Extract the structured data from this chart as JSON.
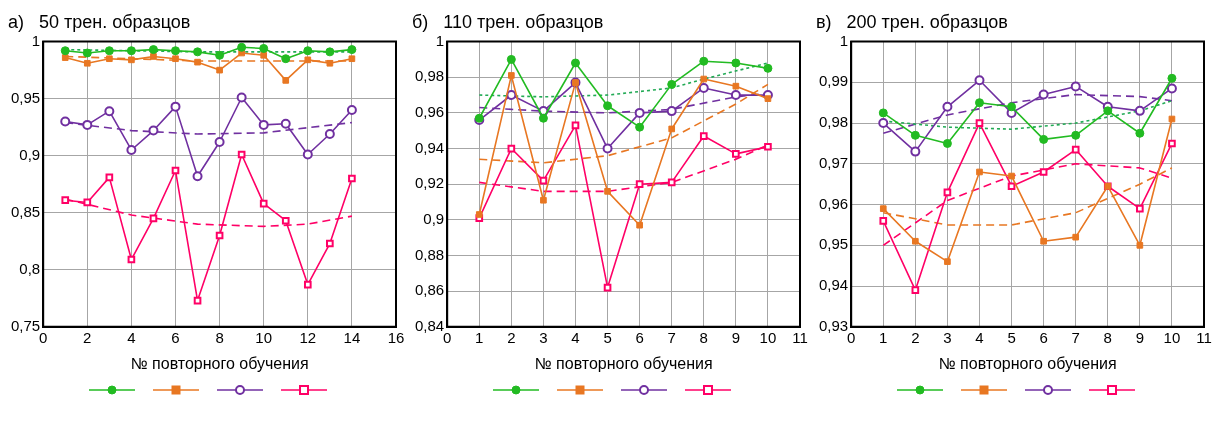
{
  "chart_data": [
    {
      "type": "line",
      "title": "а)   50 трен. образцов",
      "xlabel": "№ повторного обучения",
      "xlim": [
        0,
        16
      ],
      "xticks": [
        0,
        2,
        4,
        6,
        8,
        10,
        12,
        14,
        16
      ],
      "ylim": [
        0.75,
        1
      ],
      "yticks": [
        {
          "value": 0.75,
          "label": "0,75"
        },
        {
          "value": 0.8,
          "label": "0,8"
        },
        {
          "value": 0.85,
          "label": "0,85"
        },
        {
          "value": 0.9,
          "label": "0,9"
        },
        {
          "value": 0.95,
          "label": "0,95"
        },
        {
          "value": 1,
          "label": "1"
        }
      ],
      "grid": true,
      "x": [
        1,
        2,
        3,
        4,
        5,
        6,
        7,
        8,
        9,
        10,
        11,
        12,
        13,
        14
      ],
      "series": [
        {
          "color": "#22bb22",
          "marker": "circle",
          "values": [
            0.992,
            0.99,
            0.992,
            0.992,
            0.993,
            0.992,
            0.991,
            0.988,
            0.995,
            0.994,
            0.985,
            0.992,
            0.991,
            0.993
          ]
        },
        {
          "color": "#e87722",
          "marker": "square",
          "values": [
            0.986,
            0.981,
            0.985,
            0.984,
            0.987,
            0.985,
            0.982,
            0.975,
            0.99,
            0.988,
            0.966,
            0.984,
            0.981,
            0.985
          ]
        },
        {
          "color": "#7030a0",
          "marker": "circle",
          "values": [
            0.93,
            0.927,
            0.939,
            0.905,
            0.922,
            0.943,
            0.882,
            0.912,
            0.951,
            0.927,
            0.928,
            0.901,
            0.919,
            0.94
          ]
        },
        {
          "color": "#ff0066",
          "marker": "square",
          "values": [
            0.861,
            0.859,
            0.881,
            0.809,
            0.845,
            0.887,
            0.773,
            0.83,
            0.901,
            0.858,
            0.843,
            0.787,
            0.823,
            0.88
          ]
        },
        {
          "type": "line",
          "color": "#22aa55",
          "marker": "none",
          "line_style": "dotted",
          "x": [
            1,
            7,
            14
          ],
          "values": [
            0.993,
            0.991,
            0.991
          ]
        },
        {
          "type": "line",
          "color": "#e87722",
          "marker": "none",
          "line_style": "dashed",
          "x": [
            1,
            7,
            14
          ],
          "values": [
            0.987,
            0.983,
            0.983
          ]
        },
        {
          "type": "line",
          "color": "#7030a0",
          "marker": "none",
          "line_style": "dashed",
          "x": [
            1,
            4,
            7,
            10,
            14
          ],
          "values": [
            0.929,
            0.922,
            0.919,
            0.92,
            0.929
          ]
        },
        {
          "type": "line",
          "color": "#ff0066",
          "marker": "none",
          "line_style": "dashed",
          "x": [
            1,
            4,
            7,
            10,
            12,
            14
          ],
          "values": [
            0.862,
            0.848,
            0.84,
            0.838,
            0.84,
            0.847
          ]
        }
      ]
    },
    {
      "type": "line",
      "title": "б)   110 трен. образцов",
      "xlabel": "№ повторного обучения",
      "xlim": [
        0,
        11
      ],
      "xticks": [
        0,
        1,
        2,
        3,
        4,
        5,
        6,
        7,
        8,
        9,
        10,
        11
      ],
      "ylim": [
        0.84,
        1
      ],
      "yticks": [
        {
          "value": 0.84,
          "label": "0,84"
        },
        {
          "value": 0.86,
          "label": "0,86"
        },
        {
          "value": 0.88,
          "label": "0,88"
        },
        {
          "value": 0.9,
          "label": "0,9"
        },
        {
          "value": 0.92,
          "label": "0,92"
        },
        {
          "value": 0.94,
          "label": "0,94"
        },
        {
          "value": 0.96,
          "label": "0,96"
        },
        {
          "value": 0.98,
          "label": "0,98"
        },
        {
          "value": 1,
          "label": "1"
        }
      ],
      "grid": true,
      "x": [
        1,
        2,
        3,
        4,
        5,
        6,
        7,
        8,
        9,
        10
      ],
      "series": [
        {
          "color": "#22bb22",
          "marker": "circle",
          "values": [
            0.957,
            0.99,
            0.957,
            0.988,
            0.964,
            0.952,
            0.976,
            0.989,
            0.988,
            0.985
          ]
        },
        {
          "color": "#e87722",
          "marker": "square",
          "values": [
            0.903,
            0.981,
            0.911,
            0.977,
            0.916,
            0.897,
            0.951,
            0.979,
            0.975,
            0.968
          ]
        },
        {
          "color": "#7030a0",
          "marker": "circle",
          "values": [
            0.956,
            0.97,
            0.961,
            0.977,
            0.94,
            0.96,
            0.961,
            0.974,
            0.97,
            0.97
          ]
        },
        {
          "color": "#ff0066",
          "marker": "square",
          "values": [
            0.901,
            0.94,
            0.922,
            0.953,
            0.862,
            0.92,
            0.921,
            0.947,
            0.937,
            0.941
          ]
        },
        {
          "type": "line",
          "color": "#22aa55",
          "marker": "none",
          "line_style": "dotted",
          "x": [
            1,
            3,
            5,
            7,
            8,
            10
          ],
          "values": [
            0.97,
            0.969,
            0.97,
            0.974,
            0.979,
            0.988
          ]
        },
        {
          "type": "line",
          "color": "#e87722",
          "marker": "none",
          "line_style": "dashed",
          "x": [
            1,
            3,
            5,
            7,
            9,
            10
          ],
          "values": [
            0.934,
            0.932,
            0.936,
            0.946,
            0.965,
            0.976
          ]
        },
        {
          "type": "line",
          "color": "#7030a0",
          "marker": "none",
          "line_style": "dashed",
          "x": [
            1,
            3,
            5,
            7,
            9,
            10
          ],
          "values": [
            0.963,
            0.961,
            0.96,
            0.962,
            0.969,
            0.971
          ]
        },
        {
          "type": "line",
          "color": "#ff0066",
          "marker": "none",
          "line_style": "dashed",
          "x": [
            1,
            3,
            5,
            7,
            9,
            10
          ],
          "values": [
            0.921,
            0.916,
            0.916,
            0.921,
            0.934,
            0.942
          ]
        }
      ]
    },
    {
      "type": "line",
      "title": "в)   200 трен. образцов",
      "xlabel": "№ повторного обучения",
      "xlim": [
        0,
        11
      ],
      "xticks": [
        0,
        1,
        2,
        3,
        4,
        5,
        6,
        7,
        8,
        9,
        10,
        11
      ],
      "ylim": [
        0.93,
        1
      ],
      "yticks": [
        {
          "value": 0.93,
          "label": "0,93"
        },
        {
          "value": 0.94,
          "label": "0,94"
        },
        {
          "value": 0.95,
          "label": "0,95"
        },
        {
          "value": 0.96,
          "label": "0,96"
        },
        {
          "value": 0.97,
          "label": "0,97"
        },
        {
          "value": 0.98,
          "label": "0,98"
        },
        {
          "value": 0.99,
          "label": "0,99"
        },
        {
          "value": 1,
          "label": "1"
        }
      ],
      "grid": true,
      "x": [
        1,
        2,
        3,
        4,
        5,
        6,
        7,
        8,
        9,
        10
      ],
      "series": [
        {
          "color": "#22bb22",
          "marker": "circle",
          "values": [
            0.9825,
            0.977,
            0.975,
            0.985,
            0.984,
            0.976,
            0.977,
            0.983,
            0.9775,
            0.991
          ]
        },
        {
          "color": "#e87722",
          "marker": "square",
          "values": [
            0.959,
            0.951,
            0.946,
            0.968,
            0.967,
            0.951,
            0.952,
            0.9645,
            0.95,
            0.981
          ]
        },
        {
          "color": "#7030a0",
          "marker": "circle",
          "values": [
            0.98,
            0.973,
            0.984,
            0.9905,
            0.9825,
            0.987,
            0.989,
            0.984,
            0.983,
            0.9885
          ]
        },
        {
          "color": "#ff0066",
          "marker": "square",
          "values": [
            0.956,
            0.939,
            0.963,
            0.98,
            0.9645,
            0.968,
            0.9735,
            0.9645,
            0.959,
            0.975
          ]
        },
        {
          "type": "line",
          "color": "#22aa55",
          "marker": "none",
          "line_style": "dotted",
          "x": [
            1,
            3,
            5,
            7,
            9,
            10
          ],
          "values": [
            0.9805,
            0.979,
            0.9785,
            0.98,
            0.983,
            0.9855
          ]
        },
        {
          "type": "line",
          "color": "#e87722",
          "marker": "none",
          "line_style": "dashed",
          "x": [
            1,
            3,
            5,
            7,
            9,
            10
          ],
          "values": [
            0.958,
            0.955,
            0.955,
            0.958,
            0.965,
            0.969
          ]
        },
        {
          "type": "line",
          "color": "#7030a0",
          "marker": "none",
          "line_style": "dashed",
          "x": [
            1,
            3,
            5,
            7,
            9,
            10
          ],
          "values": [
            0.9775,
            0.982,
            0.985,
            0.987,
            0.9865,
            0.9855
          ]
        },
        {
          "type": "line",
          "color": "#ff0066",
          "marker": "none",
          "line_style": "dashed",
          "x": [
            1,
            3,
            5,
            7,
            9,
            10
          ],
          "values": [
            0.95,
            0.961,
            0.967,
            0.97,
            0.969,
            0.9665
          ]
        }
      ]
    }
  ]
}
